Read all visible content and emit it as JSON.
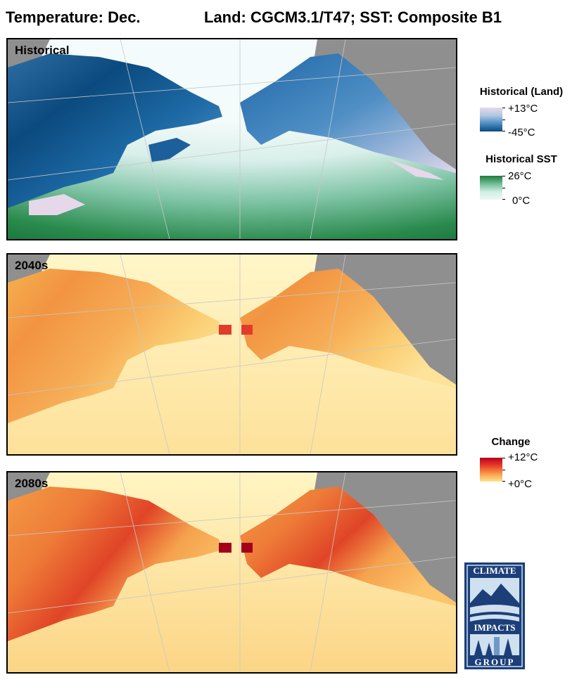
{
  "title": {
    "left": "Temperature: Dec.",
    "right": "Land: CGCM3.1/T47; SST: Composite B1"
  },
  "panels": [
    {
      "label": "Historical",
      "scheme": "historical"
    },
    {
      "label": "2040s",
      "scheme": "change_moderate"
    },
    {
      "label": "2080s",
      "scheme": "change_strong"
    }
  ],
  "legends": {
    "historical_land": {
      "title": "Historical (Land)",
      "max": "+13°C",
      "min": "-45°C",
      "colors": [
        "#e6d8ea",
        "#0b4a7e"
      ]
    },
    "historical_sst": {
      "title": "Historical SST",
      "max": "26°C",
      "min": "0°C",
      "colors": [
        "#1e7a3e",
        "#eef8f6"
      ]
    },
    "change": {
      "title": "Change",
      "max": "+12°C",
      "min": "+0°C",
      "colors": [
        "#b5001c",
        "#ffe48f"
      ]
    }
  },
  "logo": {
    "top_text": "CLIMATE",
    "mid_text": "IMPACTS",
    "bottom_text": "GROUP"
  },
  "colors": {
    "ocean_gray": "#8f8f8f",
    "water_blue": "#3d8fe0",
    "ice_blue": "#a9bccb"
  }
}
